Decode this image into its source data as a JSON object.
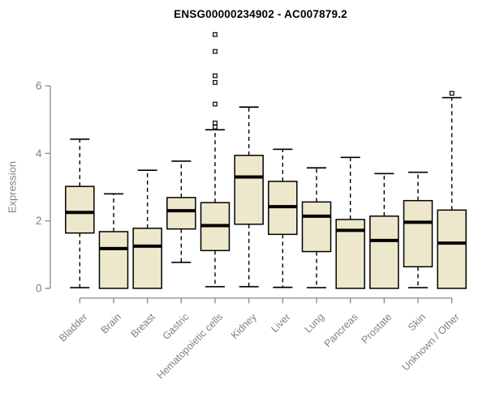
{
  "header": {
    "title": "ENSG00000234902 - AC007879.2"
  },
  "colors": {
    "background": "#FFFFFF",
    "box_fill": "#EDE8CC",
    "box_border": "#000000",
    "median": "#000000",
    "whisker": "#000000",
    "axis": "#8A8A8A",
    "tick_label": "#808080",
    "title_text": "#000000",
    "outlier_stroke": "#000000",
    "outlier_fill": "#FFFFFF"
  },
  "chart_data": {
    "type": "box",
    "title": "ENSG00000234902 - AC007879.2",
    "xlabel": "",
    "ylabel": "Expression",
    "ylim": [
      0,
      6
    ],
    "yticks": [
      0,
      2,
      4,
      6
    ],
    "grid": false,
    "legend": "none",
    "x_tick_rotation_deg": 45,
    "categories": [
      "Bladder",
      "Brain",
      "Breast",
      "Gastric",
      "Hematopoietic cells",
      "Kidney",
      "Liver",
      "Lung",
      "Pancreas",
      "Prostate",
      "Skin",
      "Unknown / Other"
    ],
    "boxes": [
      {
        "category": "Bladder",
        "whisker_low": 0.02,
        "q1": 1.64,
        "median": 2.25,
        "q3": 3.02,
        "whisker_high": 4.42,
        "outliers": []
      },
      {
        "category": "Brain",
        "whisker_low": 0.0,
        "q1": 0.0,
        "median": 1.18,
        "q3": 1.68,
        "whisker_high": 2.8,
        "outliers": []
      },
      {
        "category": "Breast",
        "whisker_low": 0.0,
        "q1": 0.0,
        "median": 1.25,
        "q3": 1.78,
        "whisker_high": 3.5,
        "outliers": []
      },
      {
        "category": "Gastric",
        "whisker_low": 0.77,
        "q1": 1.76,
        "median": 2.3,
        "q3": 2.69,
        "whisker_high": 3.77,
        "outliers": []
      },
      {
        "category": "Hematopoietic cells",
        "whisker_low": 0.05,
        "q1": 1.12,
        "median": 1.86,
        "q3": 2.54,
        "whisker_high": 4.7,
        "outliers": [
          4.78,
          4.9,
          5.46,
          6.1,
          6.3,
          7.02,
          7.52
        ]
      },
      {
        "category": "Kidney",
        "whisker_low": 0.05,
        "q1": 1.9,
        "median": 3.3,
        "q3": 3.94,
        "whisker_high": 5.37,
        "outliers": []
      },
      {
        "category": "Liver",
        "whisker_low": 0.03,
        "q1": 1.6,
        "median": 2.42,
        "q3": 3.17,
        "whisker_high": 4.12,
        "outliers": []
      },
      {
        "category": "Lung",
        "whisker_low": 0.02,
        "q1": 1.09,
        "median": 2.14,
        "q3": 2.56,
        "whisker_high": 3.57,
        "outliers": []
      },
      {
        "category": "Pancreas",
        "whisker_low": 0.0,
        "q1": 0.0,
        "median": 1.72,
        "q3": 2.04,
        "whisker_high": 3.88,
        "outliers": []
      },
      {
        "category": "Prostate",
        "whisker_low": 0.0,
        "q1": 0.0,
        "median": 1.42,
        "q3": 2.14,
        "whisker_high": 3.4,
        "outliers": []
      },
      {
        "category": "Skin",
        "whisker_low": 0.02,
        "q1": 0.64,
        "median": 1.96,
        "q3": 2.6,
        "whisker_high": 3.44,
        "outliers": []
      },
      {
        "category": "Unknown / Other",
        "whisker_low": 0.0,
        "q1": 0.0,
        "median": 1.34,
        "q3": 2.32,
        "whisker_high": 5.65,
        "outliers": [
          5.78
        ]
      }
    ]
  }
}
